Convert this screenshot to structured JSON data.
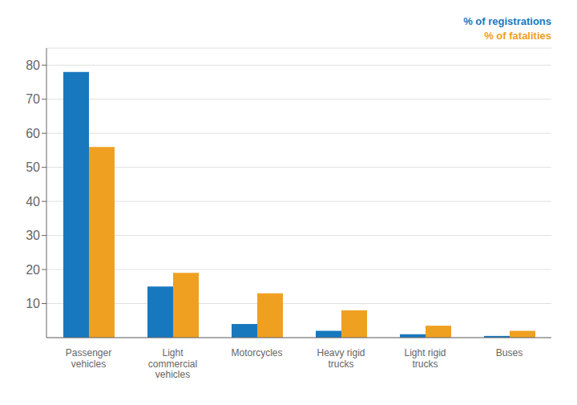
{
  "chart_data": {
    "type": "bar",
    "categories": [
      "Passenger\nvehicles",
      "Light\ncommercial\nvehicles",
      "Motorcycles",
      "Heavy rigid\ntrucks",
      "Light rigid\ntrucks",
      "Buses"
    ],
    "series": [
      {
        "name": "% of registrations",
        "color": "#1878be",
        "values": [
          78,
          15,
          4,
          2,
          1,
          0.5
        ]
      },
      {
        "name": "% of fatalities",
        "color": "#f0a020",
        "values": [
          56,
          19,
          13,
          8,
          3.5,
          2
        ]
      }
    ],
    "ylim": [
      0,
      85
    ],
    "yticks": [
      10,
      20,
      30,
      40,
      50,
      60,
      70,
      80
    ],
    "grid": true,
    "legend": "upper right"
  }
}
